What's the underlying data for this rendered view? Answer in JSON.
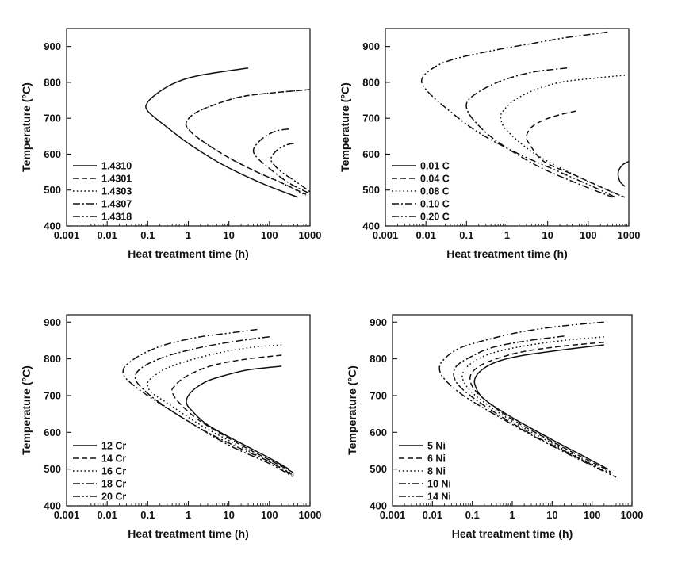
{
  "chart_data": [
    {
      "type": "line",
      "xlabel": "Heat treatment time (h)",
      "ylabel": "Temperature (°C)",
      "xscale": "log",
      "xlim": [
        0.001,
        1000
      ],
      "ylim": [
        400,
        950
      ],
      "xticks": [
        "0.001",
        "0.01",
        "0.1",
        "1",
        "10",
        "100",
        "1000"
      ],
      "yticks": [
        "400",
        "500",
        "600",
        "700",
        "800",
        "900"
      ],
      "legend_position": "bottom-left",
      "series": [
        {
          "name": "1.4310",
          "dash": "solid",
          "points": [
            [
              30,
              840
            ],
            [
              2,
              820
            ],
            [
              0.5,
              800
            ],
            [
              0.2,
              775
            ],
            [
              0.1,
              745
            ],
            [
              0.1,
              720
            ],
            [
              0.3,
              675
            ],
            [
              1,
              630
            ],
            [
              5,
              580
            ],
            [
              20,
              545
            ],
            [
              100,
              510
            ],
            [
              500,
              480
            ]
          ]
        },
        {
          "name": "1.4301",
          "dash": "dashed",
          "points": [
            [
              1000,
              780
            ],
            [
              100,
              770
            ],
            [
              20,
              760
            ],
            [
              5,
              740
            ],
            [
              1.5,
              715
            ],
            [
              0.9,
              690
            ],
            [
              1.0,
              670
            ],
            [
              2,
              640
            ],
            [
              10,
              590
            ],
            [
              50,
              550
            ],
            [
              200,
              520
            ],
            [
              800,
              488
            ]
          ]
        },
        {
          "name": "1.4303",
          "dash": "dotted",
          "points": [
            [
              1000,
              780
            ],
            [
              100,
              770
            ],
            [
              20,
              760
            ],
            [
              5,
              740
            ],
            [
              1.5,
              715
            ],
            [
              0.9,
              690
            ],
            [
              1.0,
              670
            ],
            [
              2,
              640
            ],
            [
              10,
              590
            ],
            [
              50,
              550
            ],
            [
              200,
              520
            ],
            [
              800,
              485
            ]
          ]
        },
        {
          "name": "1.4307",
          "dash": "dashdot",
          "points": [
            [
              300,
              670
            ],
            [
              150,
              665
            ],
            [
              80,
              650
            ],
            [
              50,
              630
            ],
            [
              40,
              610
            ],
            [
              50,
              590
            ],
            [
              100,
              560
            ],
            [
              300,
              520
            ],
            [
              1000,
              490
            ]
          ]
        },
        {
          "name": "1.4318",
          "dash": "dashdotdot",
          "points": [
            [
              400,
              630
            ],
            [
              250,
              625
            ],
            [
              150,
              610
            ],
            [
              110,
              590
            ],
            [
              120,
              575
            ],
            [
              200,
              550
            ],
            [
              500,
              520
            ],
            [
              1000,
              495
            ]
          ]
        }
      ]
    },
    {
      "type": "line",
      "xlabel": "Heat treatment time (h)",
      "ylabel": "Temperature (°C)",
      "xscale": "log",
      "xlim": [
        0.001,
        1000
      ],
      "ylim": [
        400,
        950
      ],
      "xticks": [
        "0.001",
        "0.01",
        "0.1",
        "1",
        "10",
        "100",
        "1000"
      ],
      "yticks": [
        "400",
        "500",
        "600",
        "700",
        "800",
        "900"
      ],
      "legend_position": "bottom-left",
      "series": [
        {
          "name": "0.01 C",
          "dash": "solid",
          "points": [
            [
              1000,
              580
            ],
            [
              700,
              570
            ],
            [
              550,
              550
            ],
            [
              600,
              525
            ],
            [
              800,
              510
            ]
          ]
        },
        {
          "name": "0.04 C",
          "dash": "dashed",
          "points": [
            [
              50,
              720
            ],
            [
              20,
              710
            ],
            [
              8,
              695
            ],
            [
              4,
              675
            ],
            [
              3,
              650
            ],
            [
              3.5,
              630
            ],
            [
              8,
              580
            ],
            [
              50,
              540
            ],
            [
              300,
              500
            ],
            [
              800,
              480
            ]
          ]
        },
        {
          "name": "0.08 C",
          "dash": "dotted",
          "points": [
            [
              800,
              820
            ],
            [
              100,
              810
            ],
            [
              20,
              800
            ],
            [
              5,
              780
            ],
            [
              1.5,
              750
            ],
            [
              0.8,
              720
            ],
            [
              0.7,
              700
            ],
            [
              1,
              665
            ],
            [
              5,
              600
            ],
            [
              50,
              540
            ],
            [
              300,
              500
            ],
            [
              700,
              482
            ]
          ]
        },
        {
          "name": "0.10 C",
          "dash": "dashdot",
          "points": [
            [
              30,
              840
            ],
            [
              5,
              830
            ],
            [
              1,
              810
            ],
            [
              0.3,
              785
            ],
            [
              0.12,
              755
            ],
            [
              0.1,
              730
            ],
            [
              0.15,
              695
            ],
            [
              0.5,
              640
            ],
            [
              5,
              570
            ],
            [
              50,
              520
            ],
            [
              400,
              480
            ]
          ]
        },
        {
          "name": "0.20 C",
          "dash": "dashdotdot",
          "points": [
            [
              300,
              940
            ],
            [
              30,
              925
            ],
            [
              5,
              910
            ],
            [
              0.5,
              890
            ],
            [
              0.05,
              865
            ],
            [
              0.015,
              840
            ],
            [
              0.008,
              810
            ],
            [
              0.01,
              780
            ],
            [
              0.03,
              730
            ],
            [
              0.2,
              660
            ],
            [
              2,
              600
            ],
            [
              20,
              550
            ],
            [
              200,
              500
            ],
            [
              500,
              478
            ]
          ]
        }
      ]
    },
    {
      "type": "line",
      "xlabel": "Heat treatment time (h)",
      "ylabel": "Temperature (°C)",
      "xscale": "log",
      "xlim": [
        0.001,
        1000
      ],
      "ylim": [
        400,
        920
      ],
      "xticks": [
        "0.001",
        "0.01",
        "0.1",
        "1",
        "10",
        "100",
        "1000"
      ],
      "yticks": [
        "400",
        "500",
        "600",
        "700",
        "800",
        "900"
      ],
      "legend_position": "bottom-left",
      "series": [
        {
          "name": "12 Cr",
          "dash": "solid",
          "points": [
            [
              200,
              780
            ],
            [
              30,
              770
            ],
            [
              8,
              755
            ],
            [
              3,
              740
            ],
            [
              1.5,
              720
            ],
            [
              1,
              700
            ],
            [
              0.9,
              680
            ],
            [
              1.2,
              660
            ],
            [
              3,
              620
            ],
            [
              20,
              570
            ],
            [
              100,
              530
            ],
            [
              300,
              500
            ]
          ]
        },
        {
          "name": "14 Cr",
          "dash": "dashed",
          "points": [
            [
              200,
              810
            ],
            [
              30,
              800
            ],
            [
              5,
              785
            ],
            [
              1.5,
              765
            ],
            [
              0.7,
              745
            ],
            [
              0.45,
              725
            ],
            [
              0.4,
              710
            ],
            [
              0.6,
              680
            ],
            [
              2,
              630
            ],
            [
              20,
              565
            ],
            [
              100,
              525
            ],
            [
              400,
              490
            ]
          ]
        },
        {
          "name": "16 Cr",
          "dash": "dotted",
          "points": [
            [
              200,
              838
            ],
            [
              30,
              830
            ],
            [
              5,
              815
            ],
            [
              1,
              795
            ],
            [
              0.3,
              775
            ],
            [
              0.15,
              755
            ],
            [
              0.1,
              735
            ],
            [
              0.12,
              710
            ],
            [
              0.3,
              680
            ],
            [
              2,
              620
            ],
            [
              20,
              560
            ],
            [
              100,
              520
            ],
            [
              400,
              485
            ]
          ]
        },
        {
          "name": "18 Cr",
          "dash": "dashdot",
          "points": [
            [
              100,
              860
            ],
            [
              20,
              850
            ],
            [
              3,
              835
            ],
            [
              0.5,
              815
            ],
            [
              0.15,
              795
            ],
            [
              0.07,
              775
            ],
            [
              0.05,
              755
            ],
            [
              0.06,
              730
            ],
            [
              0.2,
              680
            ],
            [
              2,
              610
            ],
            [
              20,
              555
            ],
            [
              100,
              520
            ],
            [
              400,
              482
            ]
          ]
        },
        {
          "name": "20 Cr",
          "dash": "dashdotdot",
          "points": [
            [
              50,
              880
            ],
            [
              10,
              870
            ],
            [
              2,
              860
            ],
            [
              0.3,
              840
            ],
            [
              0.08,
              815
            ],
            [
              0.035,
              790
            ],
            [
              0.025,
              770
            ],
            [
              0.03,
              745
            ],
            [
              0.1,
              700
            ],
            [
              1,
              630
            ],
            [
              10,
              565
            ],
            [
              100,
              515
            ],
            [
              400,
              478
            ]
          ]
        }
      ]
    },
    {
      "type": "line",
      "xlabel": "Heat treatment time (h)",
      "ylabel": "Temperature (°C)",
      "xscale": "log",
      "xlim": [
        0.001,
        1000
      ],
      "ylim": [
        400,
        920
      ],
      "xticks": [
        "0.001",
        "0.01",
        "0.1",
        "1",
        "10",
        "100",
        "1000"
      ],
      "yticks": [
        "400",
        "500",
        "600",
        "700",
        "800",
        "900"
      ],
      "legend_position": "bottom-left",
      "series": [
        {
          "name": "5 Ni",
          "dash": "solid",
          "points": [
            [
              200,
              838
            ],
            [
              20,
              825
            ],
            [
              2,
              810
            ],
            [
              0.5,
              795
            ],
            [
              0.2,
              775
            ],
            [
              0.12,
              750
            ],
            [
              0.12,
              725
            ],
            [
              0.2,
              690
            ],
            [
              1,
              640
            ],
            [
              10,
              580
            ],
            [
              50,
              540
            ],
            [
              250,
              500
            ]
          ]
        },
        {
          "name": "6 Ni",
          "dash": "dashed",
          "points": [
            [
              200,
              845
            ],
            [
              20,
              835
            ],
            [
              2,
              820
            ],
            [
              0.4,
              800
            ],
            [
              0.15,
              780
            ],
            [
              0.09,
              755
            ],
            [
              0.1,
              725
            ],
            [
              0.2,
              690
            ],
            [
              1,
              635
            ],
            [
              10,
              575
            ],
            [
              50,
              535
            ],
            [
              300,
              492
            ]
          ]
        },
        {
          "name": "8 Ni",
          "dash": "dotted",
          "points": [
            [
              200,
              860
            ],
            [
              20,
              850
            ],
            [
              2,
              835
            ],
            [
              0.3,
              815
            ],
            [
              0.1,
              790
            ],
            [
              0.06,
              765
            ],
            [
              0.06,
              740
            ],
            [
              0.12,
              700
            ],
            [
              1,
              630
            ],
            [
              10,
              570
            ],
            [
              50,
              530
            ],
            [
              300,
              488
            ]
          ]
        },
        {
          "name": "10 Ni",
          "dash": "dashdot",
          "points": [
            [
              20,
              862
            ],
            [
              2,
              848
            ],
            [
              0.3,
              830
            ],
            [
              0.09,
              805
            ],
            [
              0.04,
              780
            ],
            [
              0.035,
              750
            ],
            [
              0.06,
              715
            ],
            [
              0.3,
              660
            ],
            [
              3,
              595
            ],
            [
              30,
              540
            ],
            [
              300,
              485
            ]
          ]
        },
        {
          "name": "14 Ni",
          "dash": "dashdotdot",
          "points": [
            [
              200,
              900
            ],
            [
              20,
              890
            ],
            [
              2,
              875
            ],
            [
              0.3,
              855
            ],
            [
              0.05,
              830
            ],
            [
              0.02,
              800
            ],
            [
              0.015,
              775
            ],
            [
              0.02,
              745
            ],
            [
              0.06,
              700
            ],
            [
              0.5,
              640
            ],
            [
              5,
              580
            ],
            [
              50,
              525
            ],
            [
              400,
              478
            ]
          ]
        }
      ]
    }
  ]
}
